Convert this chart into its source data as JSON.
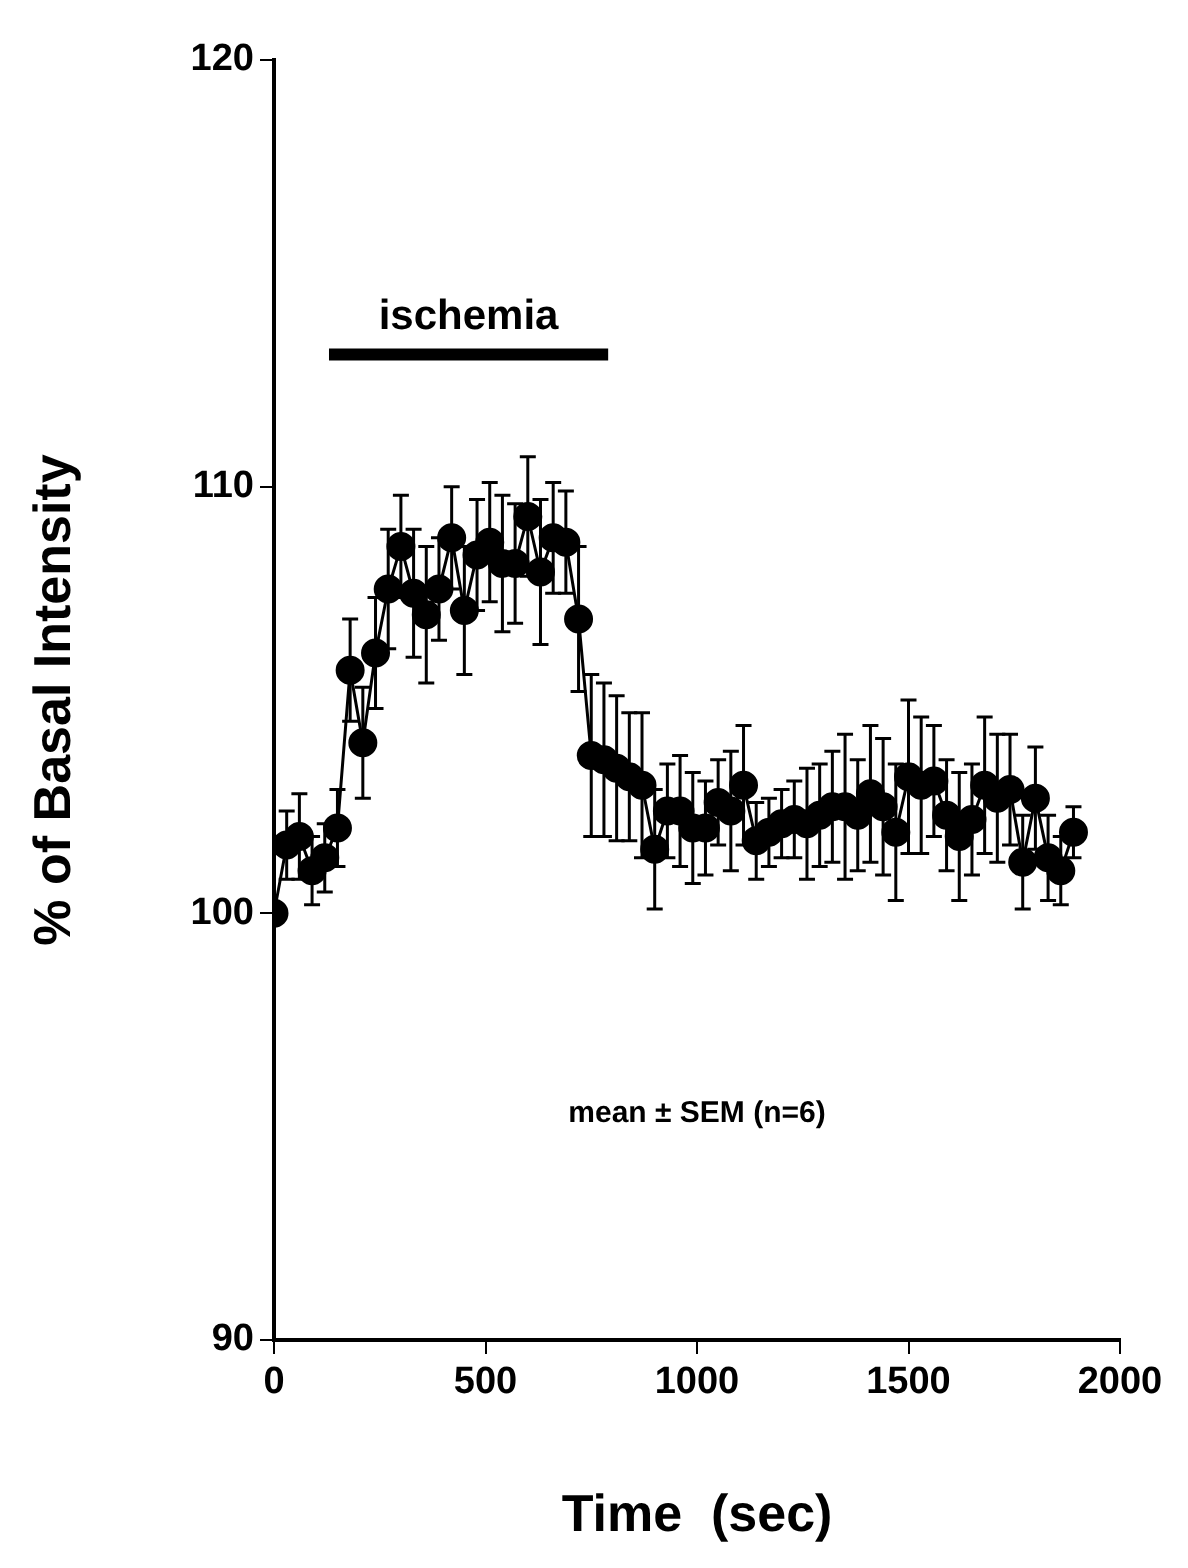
{
  "chart_data": {
    "type": "line",
    "xlabel": "Time  (sec)",
    "ylabel": "% of Basal Intensity",
    "x": [
      0,
      30,
      60,
      90,
      120,
      150,
      180,
      210,
      240,
      270,
      300,
      330,
      360,
      390,
      420,
      450,
      480,
      510,
      540,
      570,
      600,
      630,
      660,
      690,
      720,
      750,
      780,
      810,
      840,
      870,
      900,
      930,
      960,
      990,
      1020,
      1050,
      1080,
      1110,
      1140,
      1170,
      1200,
      1230,
      1260,
      1290,
      1320,
      1350,
      1380,
      1410,
      1440,
      1470,
      1500,
      1530,
      1560,
      1590,
      1620,
      1650,
      1680,
      1710,
      1740,
      1770,
      1800,
      1830,
      1860,
      1890
    ],
    "series": [
      {
        "color": "#000000",
        "values": [
          100,
          101.6,
          101.8,
          101.0,
          101.3,
          102.0,
          105.7,
          104.0,
          106.1,
          107.6,
          108.6,
          107.5,
          107.0,
          107.6,
          108.8,
          107.1,
          108.4,
          108.7,
          108.2,
          108.2,
          109.3,
          108.0,
          108.8,
          108.7,
          106.9,
          103.7,
          103.6,
          103.4,
          103.2,
          103.0,
          101.5,
          102.4,
          102.4,
          102.0,
          102.0,
          102.6,
          102.4,
          103.0,
          101.7,
          101.9,
          102.1,
          102.2,
          102.1,
          102.3,
          102.5,
          102.5,
          102.3,
          102.8,
          102.5,
          101.9,
          103.2,
          103.0,
          103.1,
          102.3,
          101.8,
          102.2,
          103.0,
          102.7,
          102.9,
          101.2,
          102.7,
          101.3,
          101.0,
          101.9
        ],
        "errors": [
          null,
          0.8,
          1.0,
          0.8,
          0.8,
          0.9,
          1.2,
          1.3,
          1.3,
          1.4,
          1.2,
          1.5,
          1.6,
          1.2,
          1.2,
          1.5,
          1.3,
          1.4,
          1.6,
          1.4,
          1.4,
          1.7,
          1.3,
          1.2,
          1.7,
          1.9,
          1.8,
          1.7,
          1.5,
          1.7,
          1.4,
          1.1,
          1.3,
          1.3,
          1.1,
          1.0,
          1.4,
          1.4,
          0.9,
          0.8,
          0.8,
          0.9,
          1.3,
          1.2,
          1.3,
          1.7,
          1.3,
          1.6,
          1.6,
          1.6,
          1.8,
          1.6,
          1.3,
          1.3,
          1.5,
          1.3,
          1.6,
          1.5,
          1.3,
          1.1,
          1.2,
          1.0,
          0.8,
          0.6
        ]
      },
      {
        "type": "line",
        "marker": "none",
        "color": "#000000",
        "x": [
          130,
          790
        ],
        "values": [
          113.1,
          113.1
        ]
      }
    ],
    "xlim": [
      0,
      2000
    ],
    "xticks": [
      0,
      500,
      1000,
      1500,
      2000
    ],
    "ylim": [
      90,
      120
    ],
    "yticks": [
      90,
      100,
      110,
      120
    ],
    "annotations": [
      {
        "text": "ischemia",
        "x": 460,
        "y": 113.1
      },
      "mean ± SEM (n=6)"
    ],
    "grid": false,
    "legend": false,
    "marker": "circle",
    "line_style": "solid"
  }
}
